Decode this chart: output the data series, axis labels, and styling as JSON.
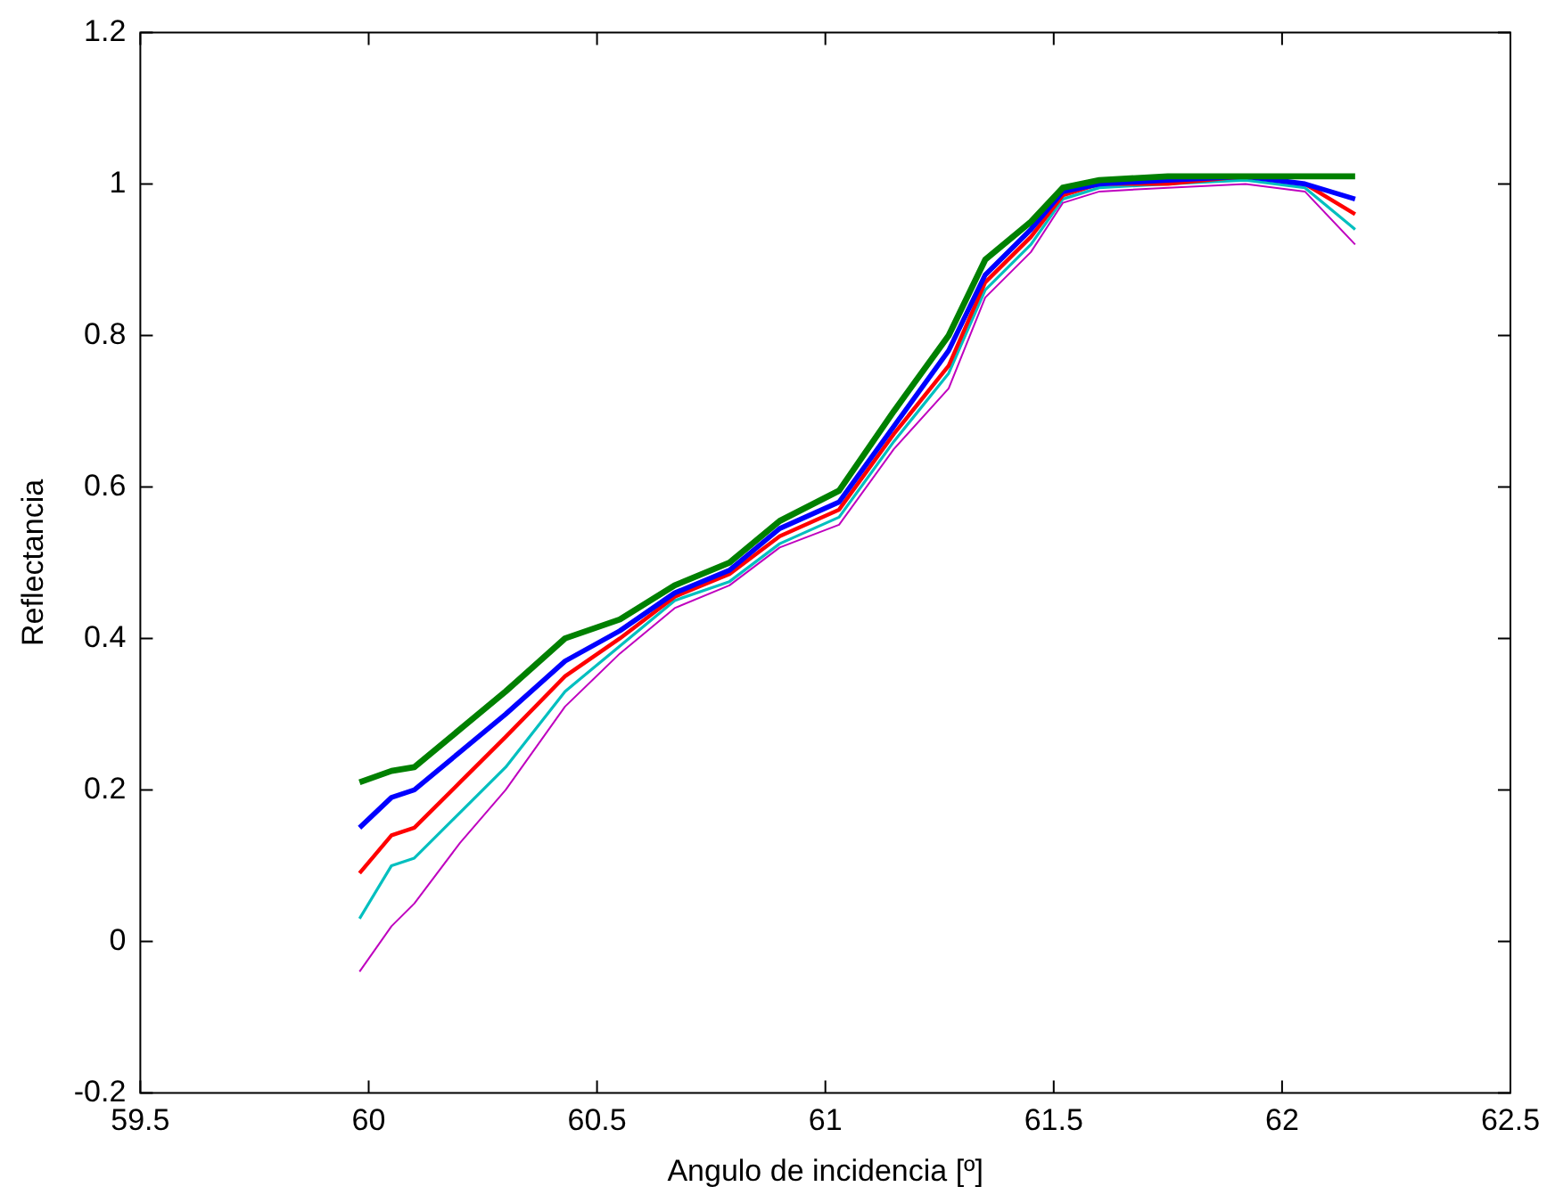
{
  "chart_data": {
    "type": "line",
    "xlabel": "Angulo de incidencia [º]",
    "ylabel": "Reflectancia",
    "x": [
      59.98,
      60.05,
      60.1,
      60.2,
      60.3,
      60.43,
      60.55,
      60.67,
      60.79,
      60.9,
      61.03,
      61.15,
      61.27,
      61.35,
      61.45,
      61.52,
      61.6,
      61.75,
      61.92,
      62.05,
      62.16
    ],
    "series": [
      {
        "color": "#008000",
        "values": [
          0.21,
          0.225,
          0.23,
          0.28,
          0.33,
          0.4,
          0.425,
          0.47,
          0.5,
          0.555,
          0.595,
          0.7,
          0.8,
          0.9,
          0.95,
          0.995,
          1.005,
          1.01,
          1.01,
          1.01,
          1.01
        ]
      },
      {
        "color": "#0000ff",
        "values": [
          0.15,
          0.19,
          0.2,
          0.25,
          0.3,
          0.37,
          0.41,
          0.46,
          0.49,
          0.545,
          0.58,
          0.68,
          0.78,
          0.88,
          0.94,
          0.99,
          1.0,
          1.005,
          1.01,
          1.0,
          0.98
        ]
      },
      {
        "color": "#ff0000",
        "values": [
          0.09,
          0.14,
          0.15,
          0.21,
          0.27,
          0.35,
          0.4,
          0.455,
          0.485,
          0.535,
          0.57,
          0.67,
          0.76,
          0.87,
          0.93,
          0.985,
          1.0,
          1.0,
          1.01,
          1.0,
          0.96
        ]
      },
      {
        "color": "#00bfbf",
        "values": [
          0.03,
          0.1,
          0.11,
          0.17,
          0.23,
          0.33,
          0.39,
          0.45,
          0.475,
          0.525,
          0.56,
          0.66,
          0.75,
          0.86,
          0.92,
          0.98,
          0.995,
          1.0,
          1.005,
          0.995,
          0.94
        ]
      },
      {
        "color": "#bf00bf",
        "values": [
          -0.04,
          0.02,
          0.05,
          0.13,
          0.2,
          0.31,
          0.38,
          0.44,
          0.47,
          0.52,
          0.55,
          0.65,
          0.73,
          0.85,
          0.91,
          0.975,
          0.99,
          0.995,
          1.0,
          0.99,
          0.92
        ]
      }
    ],
    "xlim": [
      59.5,
      62.5
    ],
    "xticks": [
      59.5,
      60,
      60.5,
      61,
      61.5,
      62,
      62.5
    ],
    "ylim": [
      -0.2,
      1.2
    ],
    "yticks": [
      -0.2,
      0,
      0.2,
      0.4,
      0.6,
      0.8,
      1,
      1.2
    ],
    "grid": false,
    "legend": false,
    "marker": "none",
    "line_style": "solid"
  }
}
